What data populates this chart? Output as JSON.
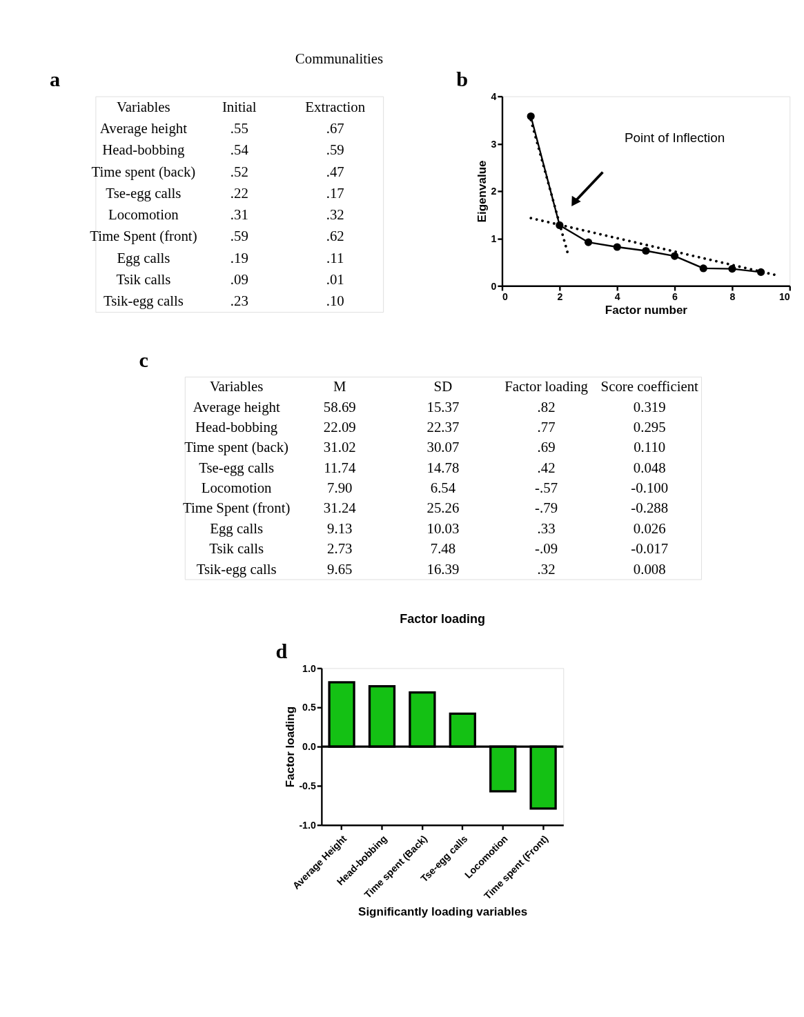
{
  "chart_data": [
    {
      "type": "other",
      "title": "Communalities",
      "annotations": [
        "a"
      ],
      "categories": [
        "Variables",
        "Initial",
        "Extraction"
      ],
      "cell_labels": [
        [
          "Average height",
          ".55",
          ".67"
        ],
        [
          "Head-bobbing",
          ".54",
          ".59"
        ],
        [
          "Time spent (back)",
          ".52",
          ".47"
        ],
        [
          "Tse-egg calls",
          ".22",
          ".17"
        ],
        [
          "Locomotion",
          ".31",
          ".32"
        ],
        [
          "Time Spent (front)",
          ".59",
          ".62"
        ],
        [
          "Egg calls",
          ".19",
          ".11"
        ],
        [
          "Tsik calls",
          ".09",
          ".01"
        ],
        [
          "Tsik-egg calls",
          ".23",
          ".10"
        ]
      ]
    },
    {
      "type": "line",
      "annotations": [
        "b",
        "Point of Inflection"
      ],
      "xlabel": "Factor number",
      "ylabel": "Eigenvalue",
      "xlim": [
        0,
        10
      ],
      "xticks": [
        0,
        2,
        4,
        6,
        8,
        10
      ],
      "ylim": [
        0,
        4
      ],
      "yticks": [
        0,
        1,
        2,
        3,
        4
      ],
      "grid": false,
      "series": [
        {
          "color": "#000000",
          "x": [
            1,
            2,
            3,
            4,
            5,
            6,
            7,
            8,
            9
          ],
          "values": [
            3.58,
            1.28,
            0.92,
            0.82,
            0.74,
            0.63,
            0.37,
            0.36,
            0.29
          ],
          "marker": "circle",
          "line_style": "solid"
        },
        {
          "color": "#000000",
          "x": [
            1,
            2.3
          ],
          "values": [
            3.5,
            0.65
          ],
          "marker": "none",
          "line_style": "dotted"
        },
        {
          "color": "#000000",
          "x": [
            1,
            9.5
          ],
          "values": [
            1.43,
            0.23
          ],
          "marker": "none",
          "line_style": "dotted"
        }
      ]
    },
    {
      "type": "other",
      "annotations": [
        "c"
      ],
      "categories": [
        "Variables",
        "M",
        "SD",
        "Factor loading",
        "Score coefficient"
      ],
      "cell_labels": [
        [
          "Average height",
          "58.69",
          "15.37",
          ".82",
          "0.319"
        ],
        [
          "Head-bobbing",
          "22.09",
          "22.37",
          ".77",
          "0.295"
        ],
        [
          "Time spent (back)",
          "31.02",
          "30.07",
          ".69",
          "0.110"
        ],
        [
          "Tse-egg calls",
          "11.74",
          "14.78",
          ".42",
          "0.048"
        ],
        [
          "Locomotion",
          "7.90",
          "6.54",
          "-.57",
          "-0.100"
        ],
        [
          "Time Spent (front)",
          "31.24",
          "25.26",
          "-.79",
          "-0.288"
        ],
        [
          "Egg calls",
          "9.13",
          "10.03",
          ".33",
          "0.026"
        ],
        [
          "Tsik calls",
          "2.73",
          "7.48",
          "-.09",
          "-0.017"
        ],
        [
          "Tsik-egg calls",
          "9.65",
          "16.39",
          ".32",
          "0.008"
        ]
      ]
    },
    {
      "type": "bar",
      "title": "Factor loading",
      "annotations": [
        "d"
      ],
      "xlabel": "Significantly loading variables",
      "ylabel": "Factor loading",
      "categories": [
        "Average Height",
        "Head-bobbing",
        "Time spent (Back)",
        "Tse-egg calls",
        "Locomotion",
        "Time spent (Front)"
      ],
      "values": [
        0.82,
        0.77,
        0.69,
        0.42,
        -0.57,
        -0.79
      ],
      "color": "#14c114",
      "ylim": [
        -1,
        1
      ],
      "yticks": [
        {
          "value": -1,
          "label": "-1.0"
        },
        {
          "value": -0.5,
          "label": "-0.5"
        },
        {
          "value": 0,
          "label": "0.0"
        },
        {
          "value": 0.5,
          "label": "0.5"
        },
        {
          "value": 1,
          "label": "1.0"
        }
      ],
      "ref_lines": [
        {
          "axis": "y",
          "value": 0,
          "color": "#000000"
        }
      ],
      "grid": false
    }
  ]
}
